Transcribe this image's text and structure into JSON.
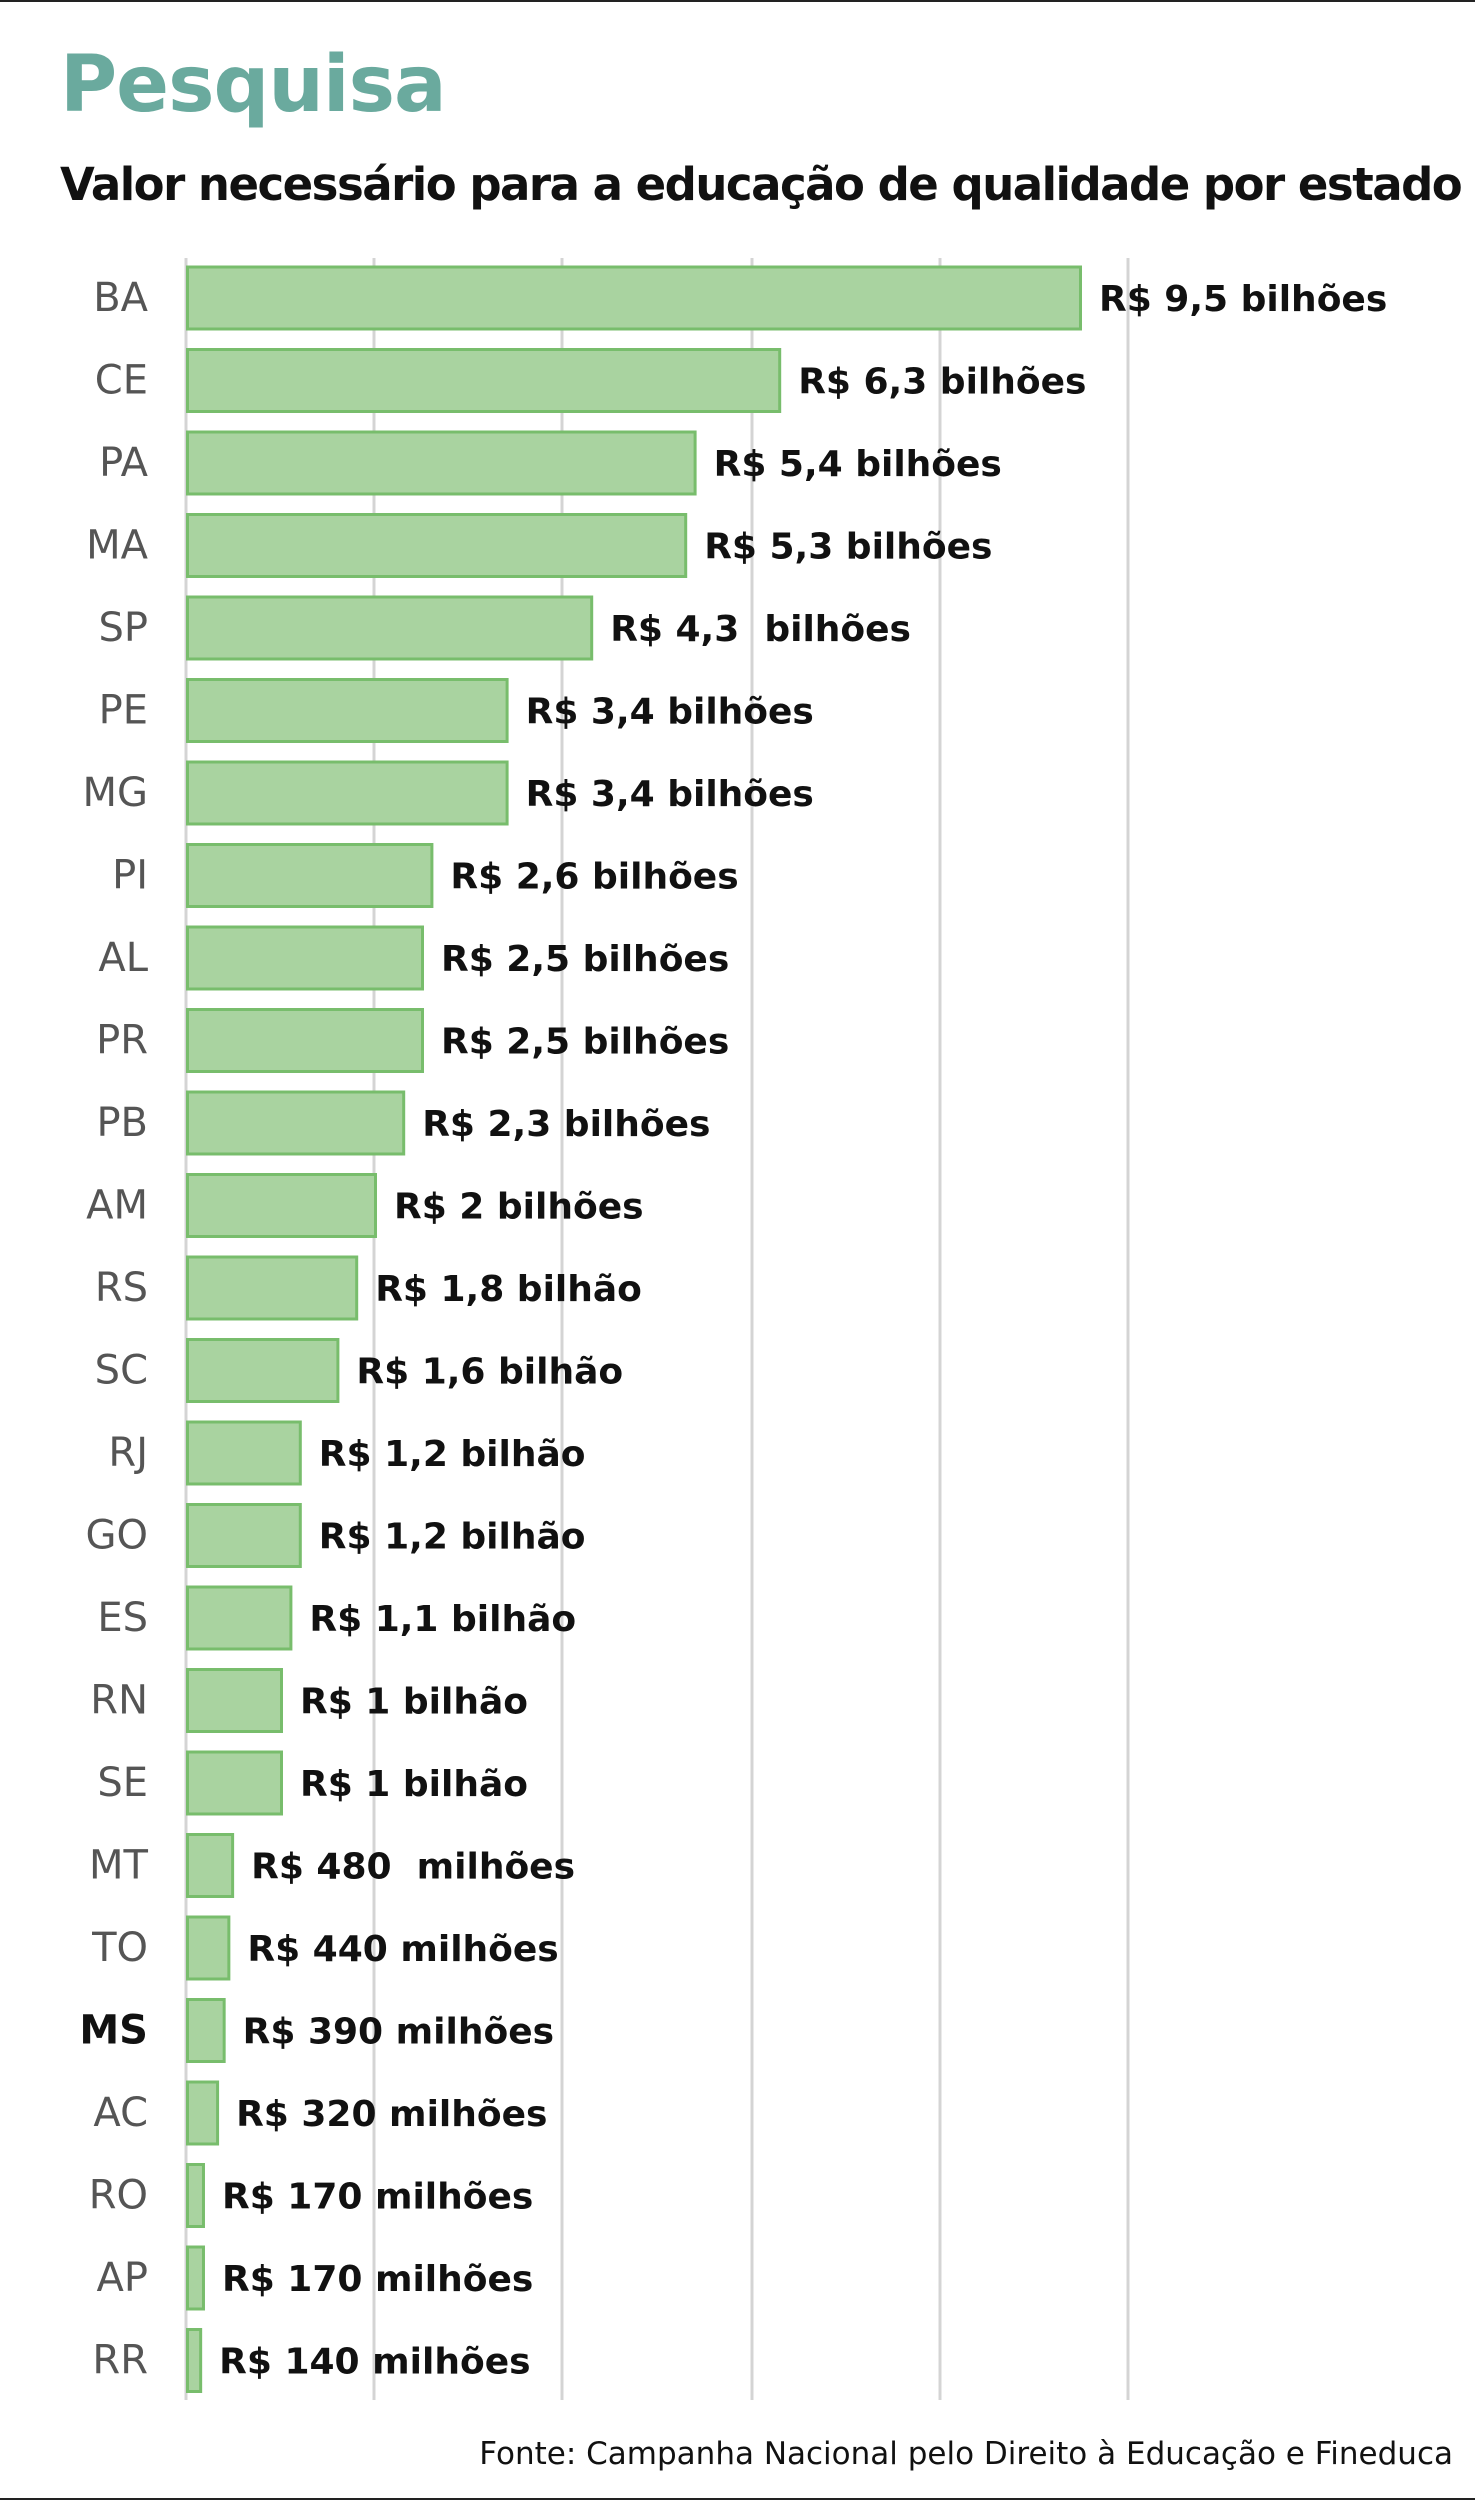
{
  "header": {
    "kicker": "Pesquisa",
    "title": "Valor necessário para a educação de qualidade por estado"
  },
  "footer": {
    "source": "Fonte: Campanha Nacional pelo Direito à Educação e Fineduca"
  },
  "colors": {
    "kicker": "#6aaa9e",
    "bar_fill": "#a9d3a0",
    "bar_stroke": "#78bd6c",
    "grid": "#d4d4d4"
  },
  "chart_data": {
    "type": "bar",
    "orientation": "horizontal",
    "title": "Valor necessário para a educação de qualidade por estado",
    "unit": "R$ bilhões",
    "grid": true,
    "categories": [
      "BA",
      "CE",
      "PA",
      "MA",
      "SP",
      "PE",
      "MG",
      "PI",
      "AL",
      "PR",
      "PB",
      "AM",
      "RS",
      "SC",
      "RJ",
      "GO",
      "ES",
      "RN",
      "SE",
      "MT",
      "TO",
      "MS",
      "AC",
      "RO",
      "AP",
      "RR"
    ],
    "values": [
      9.5,
      6.3,
      5.4,
      5.3,
      4.3,
      3.4,
      3.4,
      2.6,
      2.5,
      2.5,
      2.3,
      2.0,
      1.8,
      1.6,
      1.2,
      1.2,
      1.1,
      1.0,
      1.0,
      0.48,
      0.44,
      0.39,
      0.32,
      0.17,
      0.17,
      0.14
    ],
    "value_labels": [
      "R$ 9,5 bilhões",
      "R$ 6,3 bilhões",
      "R$ 5,4 bilhões",
      "R$ 5,3 bilhões",
      "R$ 4,3  bilhões",
      "R$ 3,4 bilhões",
      "R$ 3,4 bilhões",
      "R$ 2,6 bilhões",
      "R$ 2,5 bilhões",
      "R$ 2,5 bilhões",
      "R$ 2,3 bilhões",
      "R$ 2 bilhões",
      "R$ 1,8 bilhão",
      "R$ 1,6 bilhão",
      "R$ 1,2 bilhão",
      "R$ 1,2 bilhão",
      "R$ 1,1 bilhão",
      "R$ 1 bilhão",
      "R$ 1 bilhão",
      "R$ 480  milhões",
      "R$ 440 milhões",
      "R$ 390 milhões",
      "R$ 320 milhões",
      "R$ 170 milhões",
      "R$ 170 milhões",
      "R$ 140 milhões"
    ],
    "highlighted_category": "MS",
    "xlim": [
      0,
      10
    ]
  }
}
